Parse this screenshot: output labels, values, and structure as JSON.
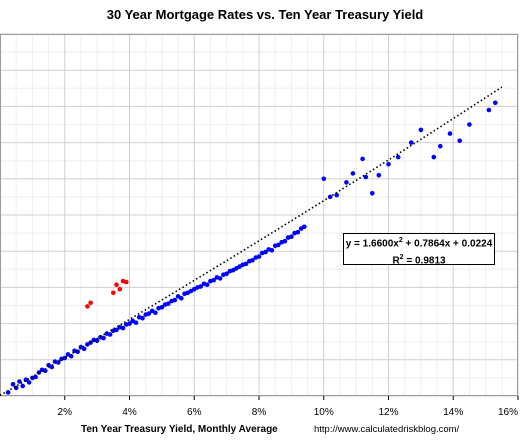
{
  "chart_data": {
    "type": "scatter",
    "title": "30 Year Mortgage Rates vs. Ten Year Treasury Yield",
    "xlabel": "Ten Year Treasury Yield, Monthly Average",
    "ylabel": "",
    "xlim": [
      0,
      16
    ],
    "ylim": [
      0,
      20
    ],
    "x_ticks": [
      "2%",
      "4%",
      "6%",
      "8%",
      "10%",
      "12%",
      "14%",
      "16%"
    ],
    "grid": true,
    "legend": "none",
    "source": "http://www.calculatedriskblog.com/",
    "trendline": {
      "type": "polynomial",
      "coefficients": [
        1.66,
        0.7864,
        0.0224
      ],
      "style": "dotted",
      "equation_parts": [
        "y = 1.6600x",
        "2",
        " + 0.7864x + 0.0224"
      ],
      "r2_parts": [
        "R",
        "2",
        " = 0.9813"
      ]
    },
    "series": [
      {
        "color": "#0000ff",
        "points": [
          [
            0.25,
            0.2
          ],
          [
            0.4,
            0.65
          ],
          [
            0.5,
            0.45
          ],
          [
            0.6,
            0.8
          ],
          [
            0.7,
            0.55
          ],
          [
            0.8,
            0.9
          ],
          [
            0.9,
            0.75
          ],
          [
            1.0,
            1.0
          ],
          [
            1.1,
            1.05
          ],
          [
            1.2,
            1.3
          ],
          [
            1.3,
            1.45
          ],
          [
            1.4,
            1.4
          ],
          [
            1.5,
            1.7
          ],
          [
            1.6,
            1.6
          ],
          [
            1.7,
            1.9
          ],
          [
            1.8,
            1.85
          ],
          [
            1.9,
            2.05
          ],
          [
            2.0,
            2.1
          ],
          [
            2.1,
            2.3
          ],
          [
            2.2,
            2.2
          ],
          [
            2.3,
            2.5
          ],
          [
            2.4,
            2.45
          ],
          [
            2.5,
            2.7
          ],
          [
            2.6,
            2.6
          ],
          [
            2.7,
            2.85
          ],
          [
            2.8,
            2.95
          ],
          [
            2.9,
            3.1
          ],
          [
            3.0,
            3.05
          ],
          [
            3.1,
            3.25
          ],
          [
            3.2,
            3.2
          ],
          [
            3.3,
            3.45
          ],
          [
            3.4,
            3.4
          ],
          [
            3.5,
            3.6
          ],
          [
            3.6,
            3.65
          ],
          [
            3.7,
            3.8
          ],
          [
            3.8,
            3.75
          ],
          [
            3.9,
            3.95
          ],
          [
            4.0,
            4.0
          ],
          [
            4.1,
            4.15
          ],
          [
            4.2,
            4.05
          ],
          [
            4.3,
            4.35
          ],
          [
            4.4,
            4.3
          ],
          [
            4.5,
            4.5
          ],
          [
            4.6,
            4.55
          ],
          [
            4.7,
            4.7
          ],
          [
            4.8,
            4.6
          ],
          [
            4.9,
            4.85
          ],
          [
            5.0,
            4.9
          ],
          [
            5.1,
            5.05
          ],
          [
            5.2,
            5.1
          ],
          [
            5.3,
            5.25
          ],
          [
            5.4,
            5.3
          ],
          [
            5.5,
            5.5
          ],
          [
            5.6,
            5.4
          ],
          [
            5.7,
            5.65
          ],
          [
            5.8,
            5.7
          ],
          [
            5.9,
            5.8
          ],
          [
            6.0,
            5.9
          ],
          [
            6.1,
            6.0
          ],
          [
            6.2,
            6.05
          ],
          [
            6.3,
            6.2
          ],
          [
            6.4,
            6.15
          ],
          [
            6.5,
            6.35
          ],
          [
            6.6,
            6.4
          ],
          [
            6.7,
            6.55
          ],
          [
            6.8,
            6.5
          ],
          [
            6.9,
            6.7
          ],
          [
            7.0,
            6.75
          ],
          [
            7.1,
            6.9
          ],
          [
            7.2,
            6.95
          ],
          [
            7.3,
            7.05
          ],
          [
            7.4,
            7.15
          ],
          [
            7.5,
            7.25
          ],
          [
            7.6,
            7.3
          ],
          [
            7.7,
            7.45
          ],
          [
            7.8,
            7.5
          ],
          [
            7.9,
            7.65
          ],
          [
            8.0,
            7.7
          ],
          [
            8.1,
            7.9
          ],
          [
            8.2,
            7.95
          ],
          [
            8.3,
            8.1
          ],
          [
            8.4,
            8.05
          ],
          [
            8.5,
            8.3
          ],
          [
            8.6,
            8.35
          ],
          [
            8.7,
            8.5
          ],
          [
            8.8,
            8.55
          ],
          [
            8.9,
            8.75
          ],
          [
            9.0,
            8.8
          ],
          [
            9.1,
            9.0
          ],
          [
            9.2,
            9.05
          ],
          [
            9.3,
            9.25
          ],
          [
            9.4,
            9.35
          ],
          [
            10.0,
            12.0
          ],
          [
            10.2,
            11.0
          ],
          [
            10.4,
            11.1
          ],
          [
            10.7,
            11.8
          ],
          [
            10.9,
            12.3
          ],
          [
            11.2,
            13.1
          ],
          [
            11.3,
            12.1
          ],
          [
            11.5,
            11.2
          ],
          [
            11.7,
            12.2
          ],
          [
            12.0,
            12.8
          ],
          [
            12.3,
            13.2
          ],
          [
            12.7,
            14.0
          ],
          [
            13.0,
            14.7
          ],
          [
            13.4,
            13.2
          ],
          [
            13.6,
            13.8
          ],
          [
            13.9,
            14.5
          ],
          [
            14.2,
            14.1
          ],
          [
            14.5,
            15.0
          ],
          [
            15.1,
            15.8
          ],
          [
            15.3,
            16.2
          ]
        ]
      },
      {
        "color": "#ff0000",
        "points": [
          [
            2.7,
            4.95
          ],
          [
            2.8,
            5.15
          ],
          [
            3.5,
            5.7
          ],
          [
            3.6,
            6.15
          ],
          [
            3.7,
            5.9
          ],
          [
            3.8,
            6.35
          ],
          [
            3.9,
            6.3
          ]
        ]
      }
    ]
  }
}
